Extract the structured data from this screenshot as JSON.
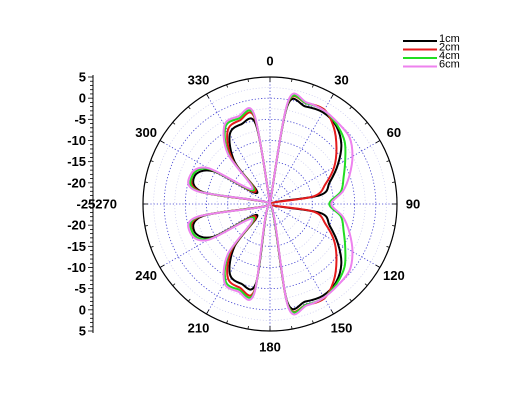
{
  "chart_data": {
    "type": "polar-line",
    "title": "",
    "angle_ticks": [
      "0",
      "30",
      "60",
      "90",
      "120",
      "150",
      "180",
      "210",
      "240",
      "270",
      "300",
      "330"
    ],
    "radial_axis": {
      "range": [
        -25,
        5
      ],
      "tick_labels_upper": [
        "5",
        "0",
        "-5",
        "-10",
        "-15",
        "-20",
        "-25"
      ],
      "tick_labels_lower": [
        "-20",
        "-15",
        "-10",
        "-5",
        "0",
        "5"
      ],
      "grid": true,
      "grid_style": "dotted"
    },
    "legend": {
      "placement": "top-right",
      "entries": [
        "1cm",
        "2cm",
        "4cm",
        "6cm"
      ]
    },
    "angles_deg": [
      0,
      10,
      20,
      30,
      40,
      50,
      60,
      70,
      80,
      90,
      100,
      110,
      120,
      130,
      140,
      150,
      160,
      170,
      180,
      190,
      200,
      210,
      220,
      230,
      240,
      250,
      260,
      270,
      280,
      290,
      300,
      310,
      320,
      330,
      340,
      350,
      360
    ],
    "series": [
      {
        "name": "1cm",
        "color": "#000000",
        "values": [
          -25,
          -1.5,
          -0.5,
          0.0,
          -0.8,
          -3.0,
          -6.5,
          -10.0,
          -13.0,
          -25,
          -13.0,
          -10.0,
          -6.5,
          -3.0,
          -0.8,
          0.0,
          -0.5,
          -1.5,
          -25,
          -6,
          -5,
          -6,
          -12,
          -21,
          -9.5,
          -6,
          -9,
          -25,
          -9,
          -6,
          -9.5,
          -21,
          -12,
          -6,
          -5,
          -6,
          -25
        ]
      },
      {
        "name": "2cm",
        "color": "#e41a1c",
        "values": [
          -25,
          -1.0,
          0.3,
          0.7,
          -1.5,
          -4.5,
          -7.5,
          -11.0,
          -14.5,
          -25,
          -14.5,
          -11.0,
          -7.5,
          -4.5,
          -1.5,
          0.7,
          0.3,
          -1.0,
          -25,
          -4.5,
          -4.0,
          -5.0,
          -11,
          -20.5,
          -8.5,
          -5.5,
          -8.5,
          -25,
          -8.5,
          -5.5,
          -8.5,
          -20.5,
          -11,
          -5.0,
          -4.0,
          -4.5,
          -25
        ]
      },
      {
        "name": "4cm",
        "color": "#22dd22",
        "values": [
          -25,
          -0.8,
          0.3,
          0.5,
          -0.5,
          -2.0,
          -4.5,
          -6.5,
          -8.0,
          -11.0,
          -8.0,
          -6.5,
          -4.5,
          -2.0,
          -0.5,
          0.5,
          0.3,
          -0.8,
          -25,
          -4.0,
          -3.5,
          -4.0,
          -10,
          -20,
          -8.5,
          -5.5,
          -8.0,
          -25,
          -8.0,
          -5.5,
          -8.5,
          -20,
          -10,
          -4.0,
          -3.5,
          -4.0,
          -25
        ]
      },
      {
        "name": "6cm",
        "color": "#ee82ee",
        "values": [
          -25,
          -0.3,
          0.5,
          0.5,
          0.0,
          -0.5,
          -2.5,
          -5.0,
          -7.5,
          -10.5,
          -7.5,
          -5.0,
          -2.5,
          -0.5,
          0.0,
          0.5,
          0.5,
          -0.3,
          -25,
          -3.5,
          -3.0,
          -3.5,
          -9.5,
          -19.5,
          -8.0,
          -5.0,
          -7.5,
          -25,
          -7.5,
          -5.0,
          -8.0,
          -19.5,
          -9.5,
          -3.5,
          -3.0,
          -3.5,
          -25
        ]
      }
    ]
  }
}
